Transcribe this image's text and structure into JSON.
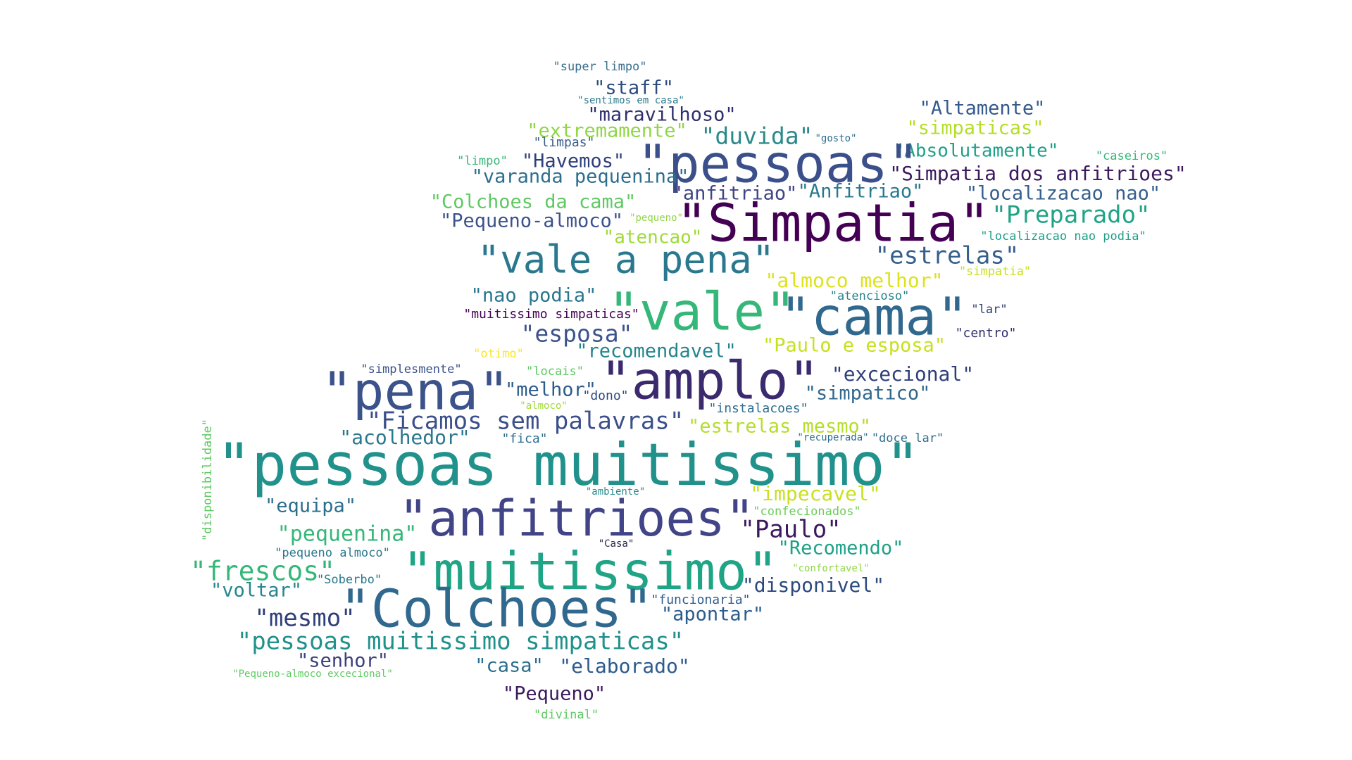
{
  "words": [
    {
      "text": "\"super limpo\"",
      "color": "#3b6f8e"
    },
    {
      "text": "\"staff\"",
      "color": "#2c4a7f"
    },
    {
      "text": "\"sentimos em casa\"",
      "color": "#2a788e"
    },
    {
      "text": "\"maravilhoso\"",
      "color": "#2f2f6e"
    },
    {
      "text": "\"Altamente\"",
      "color": "#355a8c"
    },
    {
      "text": "\"extremamente\"",
      "color": "#8fd744"
    },
    {
      "text": "\"duvida\"",
      "color": "#2a8a8a"
    },
    {
      "text": "\"gosto\"",
      "color": "#2d6e8e"
    },
    {
      "text": "\"simpaticas\"",
      "color": "#b5de2b"
    },
    {
      "text": "\"limpas\"",
      "color": "#3a5d8c"
    },
    {
      "text": "\"Absolutamente\"",
      "color": "#1fa187"
    },
    {
      "text": "\"caseiros\"",
      "color": "#35b779"
    },
    {
      "text": "\"limpo\"",
      "color": "#35b779"
    },
    {
      "text": "\"Havemos\"",
      "color": "#2f3f7a"
    },
    {
      "text": "\"pessoas\"",
      "color": "#3b4f8a"
    },
    {
      "text": "\"Simpatia dos anfitrioes\"",
      "color": "#3b1a5e"
    },
    {
      "text": "\"varanda pequenina\"",
      "color": "#2d6e8e"
    },
    {
      "text": "\"anfitriao\"",
      "color": "#414487"
    },
    {
      "text": "\"Anfitriao\"",
      "color": "#2a788e"
    },
    {
      "text": "\"localizacao nao\"",
      "color": "#355f8d"
    },
    {
      "text": "\"Colchoes da cama\"",
      "color": "#5ec962"
    },
    {
      "text": "\"Simpatia\"",
      "color": "#440154"
    },
    {
      "text": "\"Preparado\"",
      "color": "#20a486"
    },
    {
      "text": "\"Pequeno-almoco\"",
      "color": "#3b528b"
    },
    {
      "text": "\"pequeno\"",
      "color": "#8fd744"
    },
    {
      "text": "\"localizacao nao podia\"",
      "color": "#1f9e89"
    },
    {
      "text": "\"atencao\"",
      "color": "#a0da39"
    },
    {
      "text": "\"vale a pena\"",
      "color": "#2a788e"
    },
    {
      "text": "\"estrelas\"",
      "color": "#355f8d"
    },
    {
      "text": "\"simpatia\"",
      "color": "#c8e020"
    },
    {
      "text": "\"almoco melhor\"",
      "color": "#dde318"
    },
    {
      "text": "\"nao podia\"",
      "color": "#2a768e"
    },
    {
      "text": "\"atencioso\"",
      "color": "#25838e"
    },
    {
      "text": "\"vale\"",
      "color": "#35b779"
    },
    {
      "text": "\"cama\"",
      "color": "#31688e"
    },
    {
      "text": "\"lar\"",
      "color": "#2c3f7a"
    },
    {
      "text": "\"muitissimo simpaticas\"",
      "color": "#440154"
    },
    {
      "text": "\"centro\"",
      "color": "#2f2f6e"
    },
    {
      "text": "\"esposa\"",
      "color": "#3b528b"
    },
    {
      "text": "\"Paulo e esposa\"",
      "color": "#c8e020"
    },
    {
      "text": "\"otimo\"",
      "color": "#fde725"
    },
    {
      "text": "\"recomendavel\"",
      "color": "#25858e"
    },
    {
      "text": "\"simplesmente\"",
      "color": "#3b528b"
    },
    {
      "text": "\"locais\"",
      "color": "#5ec962"
    },
    {
      "text": "\"pena\"",
      "color": "#3b528b"
    },
    {
      "text": "\"amplo\"",
      "color": "#3b2a6e"
    },
    {
      "text": "\"excecional\"",
      "color": "#2f3f7a"
    },
    {
      "text": "\"melhor\"",
      "color": "#2d5b8c"
    },
    {
      "text": "\"dono\"",
      "color": "#2c4a7f"
    },
    {
      "text": "\"simpatico\"",
      "color": "#31688e"
    },
    {
      "text": "\"almoco\"",
      "color": "#a0da39"
    },
    {
      "text": "\"instalacoes\"",
      "color": "#2c6d8e"
    },
    {
      "text": "\"Ficamos sem palavras\"",
      "color": "#3b4f8a"
    },
    {
      "text": "\"estrelas mesmo\"",
      "color": "#b5de2b"
    },
    {
      "text": "\"acolhedor\"",
      "color": "#2a788e"
    },
    {
      "text": "\"fica\"",
      "color": "#2d6e8e"
    },
    {
      "text": "\"recuperada\"",
      "color": "#2a6e8e"
    },
    {
      "text": "\"doce lar\"",
      "color": "#2d6e8e"
    },
    {
      "text": "\"disponibilidade\"",
      "color": "#5ec962"
    },
    {
      "text": "\"pessoas muitissimo\"",
      "color": "#21918c"
    },
    {
      "text": "\"equipa\"",
      "color": "#2a6e8e"
    },
    {
      "text": "\"ambiente\"",
      "color": "#2d8a8e"
    },
    {
      "text": "\"impecavel\"",
      "color": "#c8e020"
    },
    {
      "text": "\"anfitrioes\"",
      "color": "#414487"
    },
    {
      "text": "\"confecionados\"",
      "color": "#6ccd5a"
    },
    {
      "text": "\"pequenina\"",
      "color": "#35b779"
    },
    {
      "text": "\"Paulo\"",
      "color": "#3b1a5e"
    },
    {
      "text": "\"Casa\"",
      "color": "#2a2a4a"
    },
    {
      "text": "\"pequeno almoco\"",
      "color": "#2a788e"
    },
    {
      "text": "\"Recomendo\"",
      "color": "#1fa187"
    },
    {
      "text": "\"frescos\"",
      "color": "#35b779"
    },
    {
      "text": "\"Soberbo\"",
      "color": "#2a788e"
    },
    {
      "text": "\"muitissimo\"",
      "color": "#20a486"
    },
    {
      "text": "\"confortavel\"",
      "color": "#8fd744"
    },
    {
      "text": "\"voltar\"",
      "color": "#25858e"
    },
    {
      "text": "\"disponivel\"",
      "color": "#2c4a7f"
    },
    {
      "text": "\"funcionaria\"",
      "color": "#2d5b8c"
    },
    {
      "text": "\"mesmo\"",
      "color": "#2f3f7a"
    },
    {
      "text": "\"Colchoes\"",
      "color": "#31688e"
    },
    {
      "text": "\"apontar\"",
      "color": "#2a5d8c"
    },
    {
      "text": "\"pessoas muitissimo simpaticas\"",
      "color": "#21918c"
    },
    {
      "text": "\"senhor\"",
      "color": "#3b3f7a"
    },
    {
      "text": "\"casa\"",
      "color": "#2a6e8e"
    },
    {
      "text": "\"elaborado\"",
      "color": "#2d5b8c"
    },
    {
      "text": "\"Pequeno-almoco excecional\"",
      "color": "#5ec962"
    },
    {
      "text": "\"Pequeno\"",
      "color": "#3b1a5e"
    },
    {
      "text": "\"divinal\"",
      "color": "#5ec962"
    }
  ]
}
